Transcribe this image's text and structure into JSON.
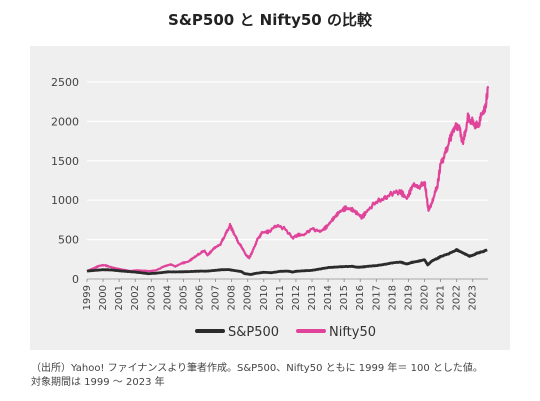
{
  "chart_data": {
    "type": "line",
    "title": "S&P500 と Nifty50 の比較",
    "xlabel": "",
    "ylabel": "",
    "xlim": [
      1999,
      2023.95
    ],
    "ylim": [
      0,
      2500
    ],
    "yticks": [
      0,
      500,
      1000,
      1500,
      2000,
      2500
    ],
    "xticks": [
      "1999",
      "2000",
      "2001",
      "2002",
      "2003",
      "2004",
      "2005",
      "2006",
      "2007",
      "2008",
      "2009",
      "2010",
      "2011",
      "2012",
      "2013",
      "2014",
      "2015",
      "2016",
      "2017",
      "2018",
      "2019",
      "2020",
      "2021",
      "2022",
      "2023"
    ],
    "grid": "horizontal",
    "legend_position": "bottom-center",
    "series": [
      {
        "name": "S&P500",
        "color": "#2b2b2b",
        "x": [
          1999.0,
          1999.5,
          2000.0,
          2000.5,
          2001.0,
          2001.5,
          2002.0,
          2002.5,
          2002.8,
          2003.2,
          2003.6,
          2004.0,
          2004.5,
          2005.0,
          2005.5,
          2006.0,
          2006.5,
          2007.0,
          2007.4,
          2007.8,
          2008.2,
          2008.6,
          2008.8,
          2009.0,
          2009.2,
          2009.5,
          2010.0,
          2010.5,
          2011.0,
          2011.5,
          2011.8,
          2012.0,
          2012.5,
          2013.0,
          2013.5,
          2014.0,
          2014.5,
          2015.0,
          2015.5,
          2015.8,
          2016.1,
          2016.5,
          2017.0,
          2017.5,
          2018.0,
          2018.5,
          2018.9,
          2019.2,
          2019.6,
          2020.0,
          2020.2,
          2020.5,
          2020.8,
          2021.0,
          2021.5,
          2022.0,
          2022.4,
          2022.8,
          2023.0,
          2023.3,
          2023.6,
          2023.9
        ],
        "values": [
          100,
          110,
          118,
          115,
          104,
          96,
          88,
          76,
          68,
          72,
          80,
          90,
          90,
          92,
          95,
          100,
          100,
          110,
          118,
          120,
          106,
          95,
          68,
          63,
          57,
          72,
          85,
          80,
          97,
          100,
          88,
          98,
          104,
          110,
          127,
          145,
          152,
          158,
          160,
          150,
          152,
          162,
          170,
          185,
          205,
          215,
          190,
          210,
          225,
          245,
          180,
          235,
          260,
          285,
          320,
          370,
          330,
          290,
          300,
          330,
          345,
          370
        ]
      },
      {
        "name": "Nifty50",
        "color": "#e0449a",
        "x": [
          1999.0,
          1999.4,
          1999.8,
          2000.1,
          2000.5,
          2000.9,
          2001.3,
          2001.7,
          2002.1,
          2002.5,
          2002.9,
          2003.3,
          2003.8,
          2004.2,
          2004.5,
          2004.9,
          2005.3,
          2005.7,
          2006.0,
          2006.3,
          2006.5,
          2006.9,
          2007.3,
          2007.6,
          2007.9,
          2008.1,
          2008.4,
          2008.7,
          2008.9,
          2009.1,
          2009.3,
          2009.6,
          2009.9,
          2010.3,
          2010.8,
          2011.3,
          2011.8,
          2012.1,
          2012.5,
          2013.0,
          2013.5,
          2013.9,
          2014.3,
          2014.7,
          2015.1,
          2015.5,
          2015.9,
          2016.1,
          2016.5,
          2017.0,
          2017.5,
          2018.0,
          2018.5,
          2018.9,
          2019.3,
          2019.7,
          2020.0,
          2020.15,
          2020.25,
          2020.5,
          2020.8,
          2021.0,
          2021.3,
          2021.6,
          2021.8,
          2022.1,
          2022.4,
          2022.7,
          2023.0,
          2023.3,
          2023.6,
          2023.8,
          2023.95
        ],
        "values": [
          100,
          135,
          170,
          175,
          150,
          130,
          115,
          100,
          110,
          105,
          100,
          110,
          160,
          185,
          160,
          200,
          220,
          280,
          320,
          360,
          300,
          390,
          440,
          560,
          680,
          600,
          470,
          380,
          300,
          270,
          350,
          500,
          590,
          600,
          680,
          640,
          520,
          560,
          560,
          640,
          600,
          660,
          760,
          850,
          900,
          880,
          820,
          780,
          880,
          980,
          1020,
          1090,
          1110,
          1020,
          1200,
          1160,
          1240,
          1020,
          860,
          1000,
          1180,
          1450,
          1600,
          1780,
          1900,
          1960,
          1720,
          2040,
          1980,
          1930,
          2100,
          2180,
          2420
        ]
      }
    ]
  },
  "note": {
    "line1": "（出所）Yahoo! ファイナンスより筆者作成。S&P500、Nifty50 ともに 1999 年＝ 100 とした値。",
    "line2": "対象期間は 1999 ～ 2023 年"
  }
}
